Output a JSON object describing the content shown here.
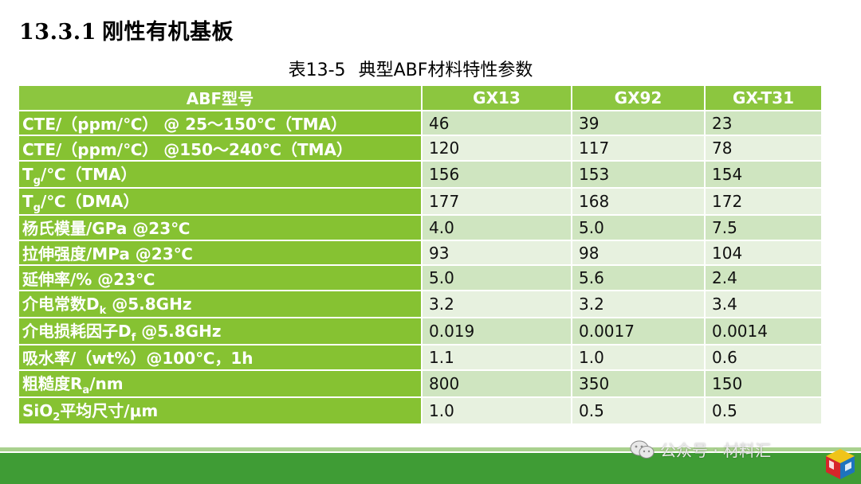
{
  "section": {
    "number": "13.3.1",
    "title": "刚性有机基板"
  },
  "caption": {
    "number": "表13-5",
    "text": "典型ABF材料特性参数"
  },
  "table": {
    "header": [
      "ABF型号",
      "GX13",
      "GX92",
      "GX-T31"
    ],
    "rows": [
      {
        "label": "CTE/（ppm/℃） @ 25～150℃（TMA）",
        "values": [
          "46",
          "39",
          "23"
        ]
      },
      {
        "label": "CTE/（ppm/℃） @150～240℃（TMA）",
        "values": [
          "120",
          "117",
          "78"
        ]
      },
      {
        "label_main": "T",
        "label_sub": "g",
        "label_rest": "/℃（TMA）",
        "values": [
          "156",
          "153",
          "154"
        ]
      },
      {
        "label_main": "T",
        "label_sub": "g",
        "label_rest": "/℃（DMA）",
        "values": [
          "177",
          "168",
          "172"
        ]
      },
      {
        "label": "杨氏模量/GPa @23℃",
        "values": [
          "4.0",
          "5.0",
          "7.5"
        ]
      },
      {
        "label": "拉伸强度/MPa @23℃",
        "values": [
          "93",
          "98",
          "104"
        ]
      },
      {
        "label": "延伸率/% @23℃",
        "values": [
          "5.0",
          "5.6",
          "2.4"
        ]
      },
      {
        "label_main": "介电常数D",
        "label_sub": "k",
        "label_rest": " @5.8GHz",
        "values": [
          "3.2",
          "3.2",
          "3.4"
        ]
      },
      {
        "label_main": "介电损耗因子D",
        "label_sub": "f",
        "label_rest": " @5.8GHz",
        "values": [
          "0.019",
          "0.0017",
          "0.0014"
        ]
      },
      {
        "label": "吸水率/（wt%）@100℃，1h",
        "values": [
          "1.1",
          "1.0",
          "0.6"
        ]
      },
      {
        "label_main": "粗糙度R",
        "label_sub": "a",
        "label_rest": "/nm",
        "values": [
          "800",
          "350",
          "150"
        ]
      },
      {
        "label_main": "SiO",
        "label_sub": "2",
        "label_rest": "平均尺寸/μm",
        "values": [
          "1.0",
          "0.5",
          "0.5"
        ]
      }
    ]
  },
  "watermark": {
    "text": "公众号 · 材料汇",
    "icon": "wechat-icon"
  },
  "logo": {
    "icon": "material-cube-logo"
  },
  "colors": {
    "header_green": "#8cc63f",
    "label_green": "#86c232",
    "row_light": "#e7f1df",
    "row_mid": "#cfe5c0",
    "footer_dark": "#3f9c35",
    "footer_light": "#a9d18e"
  }
}
